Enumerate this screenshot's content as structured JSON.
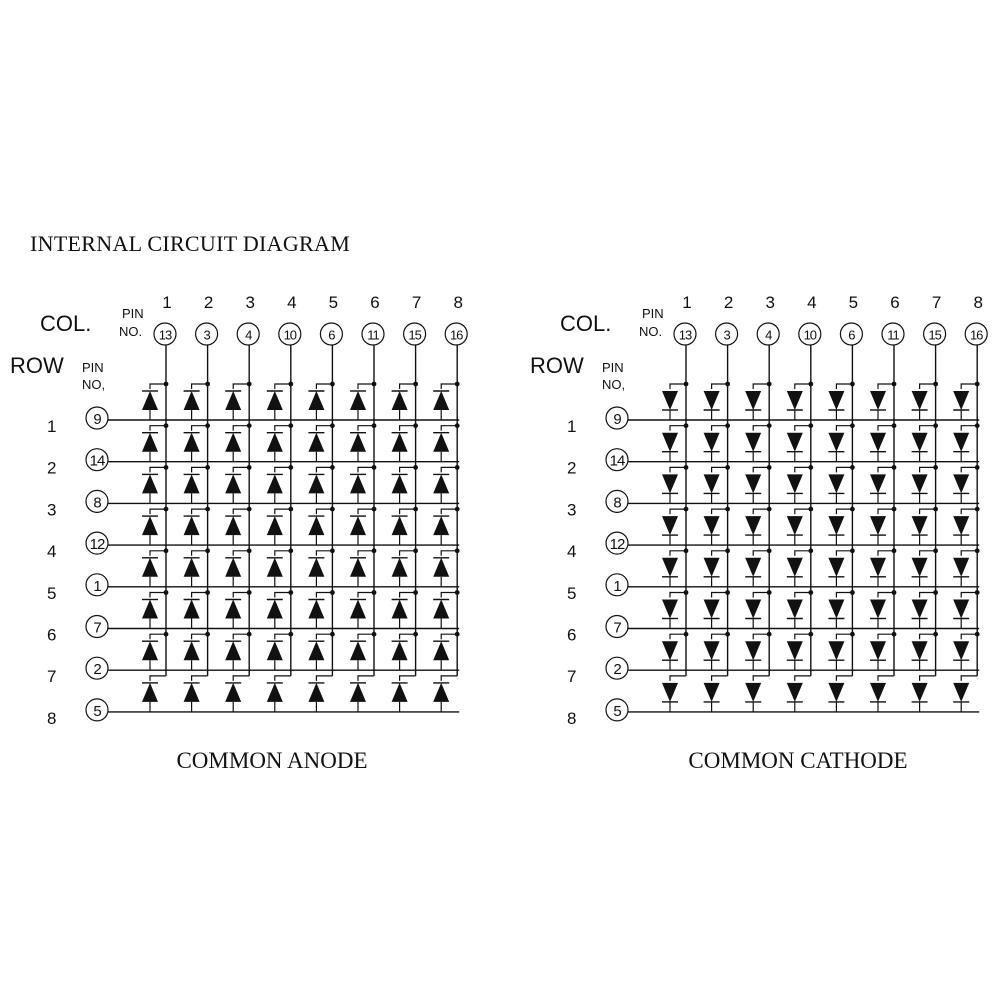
{
  "title": "INTERNAL CIRCUIT DIAGRAM",
  "col_label": "COL.",
  "row_label": "ROW",
  "pin_label": "PIN",
  "no_label": "NO.",
  "no_label_row": "NO,",
  "columns": [
    "1",
    "2",
    "3",
    "4",
    "5",
    "6",
    "7",
    "8"
  ],
  "rows": [
    "1",
    "2",
    "3",
    "4",
    "5",
    "6",
    "7",
    "8"
  ],
  "column_pins": [
    "13",
    "3",
    "4",
    "10",
    "6",
    "11",
    "15",
    "16"
  ],
  "row_pins": [
    "9",
    "14",
    "8",
    "12",
    "1",
    "7",
    "2",
    "5"
  ],
  "diagrams": [
    {
      "caption": "COMMON ANODE",
      "diode_direction": "up"
    },
    {
      "caption": "COMMON CATHODE",
      "diode_direction": "down"
    }
  ],
  "colors": {
    "ink": "#111111",
    "background": "#ffffff"
  }
}
